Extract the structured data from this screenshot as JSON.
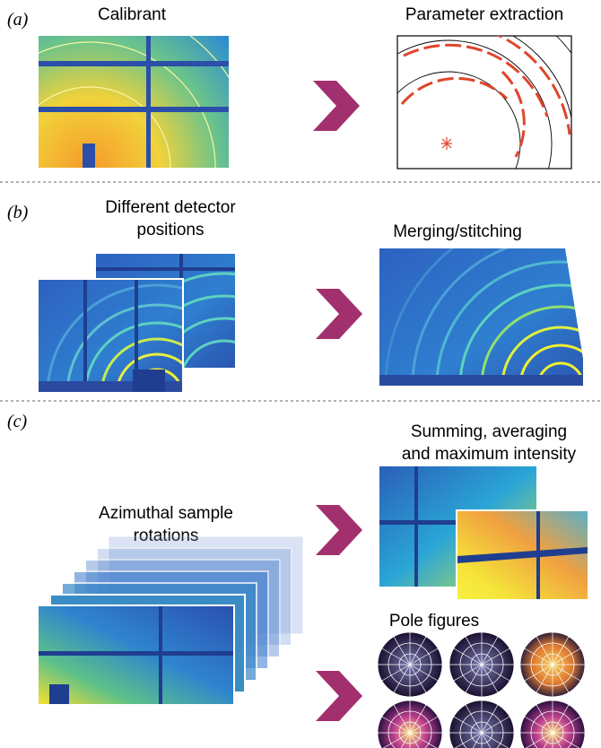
{
  "panels": [
    {
      "label": "(a)",
      "left": [
        "Calibrant"
      ],
      "right": [
        "Parameter extraction"
      ]
    },
    {
      "label": "(b)",
      "left": [
        "Different detector",
        "positions"
      ],
      "right": [
        "Merging/stitching"
      ]
    },
    {
      "label": "(c)",
      "left": [
        "Azimuthal sample",
        "rotations"
      ],
      "right": [
        "Summing, averaging",
        "and maximum intensity"
      ],
      "right2": [
        "Pole figures"
      ]
    }
  ]
}
